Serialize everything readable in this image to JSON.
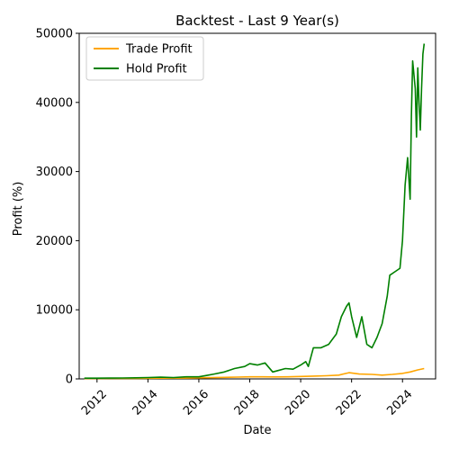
{
  "chart_data": {
    "type": "line",
    "title": "Backtest - Last 9 Year(s)",
    "xlabel": "Date",
    "ylabel": "Profit (%)",
    "xlim": [
      2011.3,
      2025.3
    ],
    "ylim": [
      0,
      50000
    ],
    "x_ticks": [
      2012,
      2014,
      2016,
      2018,
      2020,
      2022,
      2024
    ],
    "y_ticks": [
      0,
      10000,
      20000,
      30000,
      40000,
      50000
    ],
    "grid": false,
    "legend_position": "top-left",
    "series": [
      {
        "name": "Trade Profit",
        "color": "#ffa500",
        "x": [
          2011.5,
          2012.5,
          2013.5,
          2014.5,
          2015.5,
          2016.0,
          2016.5,
          2017.0,
          2017.5,
          2018.0,
          2018.5,
          2019.0,
          2019.5,
          2020.0,
          2020.5,
          2021.0,
          2021.5,
          2021.9,
          2022.3,
          2022.8,
          2023.2,
          2023.6,
          2024.0,
          2024.3,
          2024.6,
          2024.85
        ],
        "values": [
          50,
          60,
          80,
          100,
          120,
          150,
          180,
          220,
          260,
          300,
          300,
          280,
          300,
          350,
          400,
          450,
          550,
          900,
          700,
          650,
          550,
          650,
          800,
          1000,
          1300,
          1500
        ]
      },
      {
        "name": "Hold Profit",
        "color": "#008000",
        "x": [
          2011.5,
          2012.0,
          2012.5,
          2013.0,
          2013.5,
          2014.0,
          2014.5,
          2015.0,
          2015.5,
          2016.0,
          2016.3,
          2016.6,
          2017.0,
          2017.4,
          2017.8,
          2018.0,
          2018.3,
          2018.6,
          2018.9,
          2019.1,
          2019.4,
          2019.7,
          2020.0,
          2020.2,
          2020.3,
          2020.5,
          2020.8,
          2021.1,
          2021.4,
          2021.6,
          2021.8,
          2021.9,
          2022.0,
          2022.2,
          2022.4,
          2022.6,
          2022.8,
          2023.0,
          2023.2,
          2023.4,
          2023.5,
          2023.7,
          2023.9,
          2024.0,
          2024.1,
          2024.2,
          2024.3,
          2024.35,
          2024.4,
          2024.5,
          2024.55,
          2024.6,
          2024.65,
          2024.7,
          2024.75,
          2024.8,
          2024.85
        ],
        "values": [
          100,
          100,
          120,
          130,
          150,
          200,
          250,
          200,
          300,
          300,
          500,
          700,
          1000,
          1500,
          1800,
          2200,
          2000,
          2300,
          1000,
          1200,
          1500,
          1400,
          2000,
          2500,
          1800,
          4500,
          4500,
          5000,
          6500,
          9000,
          10500,
          11000,
          9000,
          6000,
          9000,
          5000,
          4500,
          6000,
          8000,
          12000,
          15000,
          15500,
          16000,
          20000,
          28000,
          32000,
          26000,
          38000,
          46000,
          42000,
          35000,
          45000,
          40000,
          36000,
          42000,
          47000,
          48500
        ]
      }
    ]
  }
}
